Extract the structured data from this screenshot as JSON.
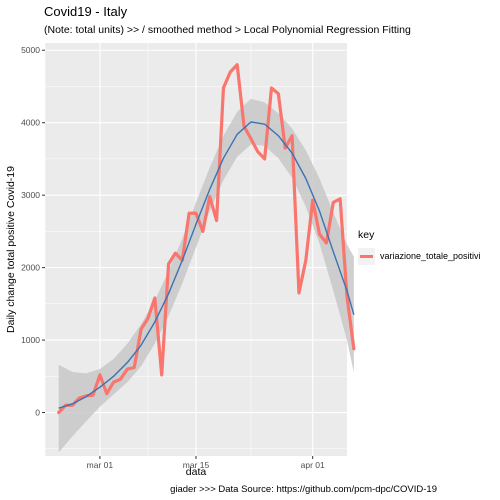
{
  "title": "Covid19 - Italy",
  "subtitle": "(Note: total units) >>  / smoothed method > Local Polynomial Regression Fitting",
  "caption": "giader >>> Data Source: https://github.com/pcm-dpc/COVID-19",
  "colors": {
    "panel": "#ebebeb",
    "grid_major": "#ffffff",
    "series": "#f8766d",
    "smooth": "#3a73b5",
    "ribbon": "#c8c8c8"
  },
  "chart_data": {
    "type": "line",
    "title": "Covid19 - Italy",
    "xlabel": "data",
    "ylabel": "Daily change total positive Covid-19",
    "x_unit": "date",
    "xlim": [
      "2020-02-22",
      "2020-04-06"
    ],
    "ylim": [
      -600,
      5100
    ],
    "x_ticks": [
      {
        "date": "2020-03-01",
        "label": "mar 01"
      },
      {
        "date": "2020-03-15",
        "label": "mar 15"
      },
      {
        "date": "2020-04-01",
        "label": "apr 01"
      }
    ],
    "y_ticks": [
      0,
      1000,
      2000,
      3000,
      4000,
      5000
    ],
    "grid": true,
    "legend": {
      "title": "key",
      "position": "right",
      "entries": [
        "variazione_totale_positivi"
      ]
    },
    "series": [
      {
        "name": "variazione_totale_positivi",
        "points": [
          [
            "2020-02-24",
            0
          ],
          [
            "2020-02-25",
            100
          ],
          [
            "2020-02-26",
            100
          ],
          [
            "2020-02-27",
            200
          ],
          [
            "2020-02-28",
            230
          ],
          [
            "2020-02-29",
            240
          ],
          [
            "2020-03-01",
            520
          ],
          [
            "2020-03-02",
            260
          ],
          [
            "2020-03-03",
            420
          ],
          [
            "2020-03-04",
            460
          ],
          [
            "2020-03-05",
            600
          ],
          [
            "2020-03-06",
            620
          ],
          [
            "2020-03-07",
            1150
          ],
          [
            "2020-03-08",
            1300
          ],
          [
            "2020-03-09",
            1580
          ],
          [
            "2020-03-10",
            520
          ],
          [
            "2020-03-11",
            2050
          ],
          [
            "2020-03-12",
            2200
          ],
          [
            "2020-03-13",
            2100
          ],
          [
            "2020-03-14",
            2750
          ],
          [
            "2020-03-15",
            2750
          ],
          [
            "2020-03-16",
            2500
          ],
          [
            "2020-03-17",
            2980
          ],
          [
            "2020-03-18",
            2650
          ],
          [
            "2020-03-19",
            4480
          ],
          [
            "2020-03-20",
            4700
          ],
          [
            "2020-03-21",
            4800
          ],
          [
            "2020-03-22",
            3950
          ],
          [
            "2020-03-23",
            3780
          ],
          [
            "2020-03-24",
            3600
          ],
          [
            "2020-03-25",
            3500
          ],
          [
            "2020-03-26",
            4480
          ],
          [
            "2020-03-27",
            4400
          ],
          [
            "2020-03-28",
            3650
          ],
          [
            "2020-03-29",
            3820
          ],
          [
            "2020-03-30",
            1650
          ],
          [
            "2020-03-31",
            2100
          ],
          [
            "2020-04-01",
            2930
          ],
          [
            "2020-04-02",
            2460
          ],
          [
            "2020-04-03",
            2340
          ],
          [
            "2020-04-04",
            2900
          ],
          [
            "2020-04-05",
            2950
          ],
          [
            "2020-04-06",
            1600
          ],
          [
            "2020-04-07",
            880
          ]
        ]
      },
      {
        "name": "",
        "kind": "smooth",
        "points": [
          [
            "2020-02-24",
            60
          ],
          [
            "2020-02-26",
            120
          ],
          [
            "2020-02-28",
            220
          ],
          [
            "2020-03-01",
            350
          ],
          [
            "2020-03-03",
            500
          ],
          [
            "2020-03-05",
            690
          ],
          [
            "2020-03-07",
            930
          ],
          [
            "2020-03-09",
            1250
          ],
          [
            "2020-03-11",
            1640
          ],
          [
            "2020-03-13",
            2100
          ],
          [
            "2020-03-15",
            2600
          ],
          [
            "2020-03-17",
            3080
          ],
          [
            "2020-03-19",
            3510
          ],
          [
            "2020-03-21",
            3840
          ],
          [
            "2020-03-23",
            4010
          ],
          [
            "2020-03-25",
            3980
          ],
          [
            "2020-03-27",
            3820
          ],
          [
            "2020-03-29",
            3580
          ],
          [
            "2020-03-31",
            3230
          ],
          [
            "2020-04-02",
            2780
          ],
          [
            "2020-04-04",
            2220
          ],
          [
            "2020-04-06",
            1680
          ],
          [
            "2020-04-07",
            1350
          ]
        ],
        "band": [
          [
            -550,
            660
          ],
          [
            -330,
            560
          ],
          [
            -120,
            540
          ],
          [
            80,
            600
          ],
          [
            250,
            740
          ],
          [
            420,
            950
          ],
          [
            640,
            1220
          ],
          [
            950,
            1550
          ],
          [
            1330,
            1950
          ],
          [
            1780,
            2400
          ],
          [
            2280,
            2900
          ],
          [
            2780,
            3380
          ],
          [
            3210,
            3820
          ],
          [
            3530,
            4150
          ],
          [
            3700,
            4330
          ],
          [
            3680,
            4280
          ],
          [
            3510,
            4130
          ],
          [
            3240,
            3920
          ],
          [
            2840,
            3620
          ],
          [
            2330,
            3230
          ],
          [
            1680,
            2760
          ],
          [
            1000,
            2320
          ],
          [
            550,
            2150
          ]
        ]
      }
    ]
  }
}
